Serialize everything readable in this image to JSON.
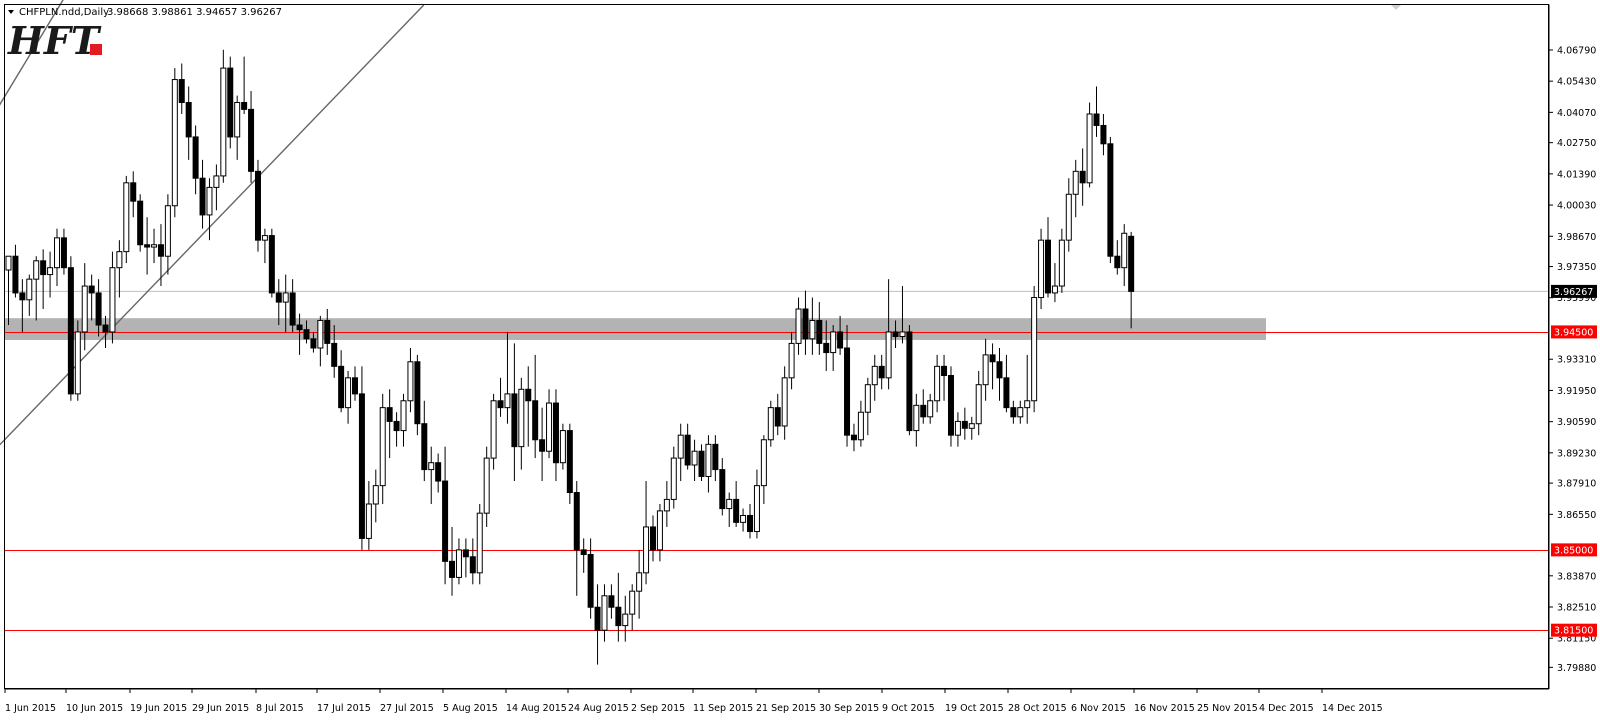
{
  "chart_data": {
    "type": "candlestick",
    "title": "CHFPLN.ndd,Daily",
    "ohlc_header": "3.98668 3.98861 3.94657 3.96267",
    "logo_text": "HFT",
    "ylim": [
      3.7898,
      4.0875
    ],
    "y_ticks": [
      4.0679,
      4.0543,
      4.0407,
      4.0275,
      4.0139,
      4.0003,
      3.9867,
      3.9735,
      3.9599,
      3.9331,
      3.9195,
      3.9059,
      3.8923,
      3.8791,
      3.8655,
      3.8387,
      3.8251,
      3.8115,
      3.7988
    ],
    "x_labels": [
      "1 Jun 2015",
      "10 Jun 2015",
      "19 Jun 2015",
      "29 Jun 2015",
      "8 Jul 2015",
      "17 Jul 2015",
      "27 Jul 2015",
      "5 Aug 2015",
      "14 Aug 2015",
      "24 Aug 2015",
      "2 Sep 2015",
      "11 Sep 2015",
      "21 Sep 2015",
      "30 Sep 2015",
      "9 Oct 2015",
      "19 Oct 2015",
      "28 Oct 2015",
      "6 Nov 2015",
      "16 Nov 2015",
      "25 Nov 2015",
      "4 Dec 2015",
      "14 Dec 2015"
    ],
    "current_price": 3.96267,
    "current_price_label": "3.96267",
    "horizontal_levels": [
      {
        "value": 3.945,
        "label": "3.94500",
        "color": "#ff0000"
      },
      {
        "value": 3.85,
        "label": "3.85000",
        "color": "#ff0000"
      },
      {
        "value": 3.815,
        "label": "3.81500",
        "color": "#ff0000"
      }
    ],
    "zone": {
      "from": 3.9415,
      "to": 3.951,
      "color": "#b3b3b3"
    },
    "channel_lines": [
      [
        [
          0,
          3.975
        ],
        [
          1,
          3.9
        ]
      ],
      [
        [
          3.9,
          0
        ],
        [
          0,
          0
        ]
      ]
    ],
    "trendlines": [
      {
        "start": {
          "bar": -4,
          "price": 4.03
        },
        "end": {
          "bar": 14,
          "price": 4.12
        }
      },
      {
        "start": {
          "bar": -4,
          "price": 3.887
        },
        "end": {
          "bar": 60,
          "price": 4.0875
        }
      }
    ],
    "colors": {
      "bull_body": "#ffffff",
      "bear_body": "#000000",
      "wick": "#000000",
      "grid_text": "#000000",
      "level": "#ff0000",
      "zone": "#b3b3b3",
      "current_line": "#c0c0c0",
      "logo": "#1a1a1a",
      "logo_accent": "#e31b23"
    },
    "candles": [
      [
        3.972,
        3.978,
        3.948,
        3.978
      ],
      [
        3.978,
        3.983,
        3.96,
        3.962
      ],
      [
        3.962,
        3.968,
        3.945,
        3.959
      ],
      [
        3.959,
        3.97,
        3.952,
        3.968
      ],
      [
        3.968,
        3.978,
        3.95,
        3.976
      ],
      [
        3.976,
        3.981,
        3.955,
        3.97
      ],
      [
        3.97,
        3.98,
        3.96,
        3.973
      ],
      [
        3.973,
        3.99,
        3.965,
        3.986
      ],
      [
        3.986,
        3.99,
        3.97,
        3.973
      ],
      [
        3.973,
        3.978,
        3.915,
        3.918
      ],
      [
        3.918,
        3.95,
        3.915,
        3.945
      ],
      [
        3.945,
        3.975,
        3.937,
        3.965
      ],
      [
        3.965,
        3.97,
        3.95,
        3.962
      ],
      [
        3.962,
        3.968,
        3.943,
        3.948
      ],
      [
        3.948,
        3.952,
        3.938,
        3.945
      ],
      [
        3.945,
        3.98,
        3.94,
        3.973
      ],
      [
        3.973,
        3.985,
        3.96,
        3.98
      ],
      [
        3.98,
        4.013,
        3.975,
        4.01
      ],
      [
        4.01,
        4.015,
        3.995,
        4.002
      ],
      [
        4.002,
        4.005,
        3.98,
        3.983
      ],
      [
        3.983,
        3.995,
        3.97,
        3.982
      ],
      [
        3.982,
        3.99,
        3.975,
        3.983
      ],
      [
        3.983,
        3.992,
        3.965,
        3.978
      ],
      [
        3.978,
        4.005,
        3.97,
        4.0
      ],
      [
        4.0,
        4.06,
        3.995,
        4.055
      ],
      [
        4.055,
        4.062,
        4.04,
        4.045
      ],
      [
        4.045,
        4.052,
        4.02,
        4.03
      ],
      [
        4.03,
        4.035,
        4.005,
        4.012
      ],
      [
        4.012,
        4.02,
        3.99,
        3.996
      ],
      [
        3.996,
        4.012,
        3.985,
        4.008
      ],
      [
        4.008,
        4.018,
        3.998,
        4.013
      ],
      [
        4.013,
        4.068,
        4.01,
        4.06
      ],
      [
        4.06,
        4.065,
        4.025,
        4.03
      ],
      [
        4.03,
        4.048,
        4.02,
        4.045
      ],
      [
        4.045,
        4.065,
        4.04,
        4.042
      ],
      [
        4.042,
        4.05,
        4.01,
        4.015
      ],
      [
        4.015,
        4.02,
        3.98,
        3.985
      ],
      [
        3.985,
        3.99,
        3.975,
        3.987
      ],
      [
        3.987,
        3.99,
        3.96,
        3.962
      ],
      [
        3.962,
        3.968,
        3.948,
        3.958
      ],
      [
        3.958,
        3.97,
        3.945,
        3.962
      ],
      [
        3.962,
        3.968,
        3.945,
        3.948
      ],
      [
        3.948,
        3.953,
        3.935,
        3.946
      ],
      [
        3.946,
        3.95,
        3.94,
        3.942
      ],
      [
        3.942,
        3.945,
        3.936,
        3.938
      ],
      [
        3.938,
        3.952,
        3.93,
        3.95
      ],
      [
        3.95,
        3.955,
        3.935,
        3.94
      ],
      [
        3.94,
        3.948,
        3.925,
        3.93
      ],
      [
        3.93,
        3.937,
        3.91,
        3.912
      ],
      [
        3.912,
        3.928,
        3.905,
        3.925
      ],
      [
        3.925,
        3.93,
        3.915,
        3.918
      ],
      [
        3.918,
        3.93,
        3.85,
        3.855
      ],
      [
        3.855,
        3.88,
        3.85,
        3.87
      ],
      [
        3.87,
        3.885,
        3.862,
        3.878
      ],
      [
        3.878,
        3.918,
        3.87,
        3.912
      ],
      [
        3.912,
        3.92,
        3.89,
        3.906
      ],
      [
        3.906,
        3.91,
        3.895,
        3.902
      ],
      [
        3.902,
        3.918,
        3.895,
        3.915
      ],
      [
        3.915,
        3.938,
        3.91,
        3.932
      ],
      [
        3.932,
        3.935,
        3.9,
        3.905
      ],
      [
        3.905,
        3.915,
        3.88,
        3.885
      ],
      [
        3.885,
        3.895,
        3.87,
        3.888
      ],
      [
        3.888,
        3.892,
        3.875,
        3.88
      ],
      [
        3.88,
        3.895,
        3.835,
        3.845
      ],
      [
        3.845,
        3.86,
        3.83,
        3.838
      ],
      [
        3.838,
        3.855,
        3.835,
        3.85
      ],
      [
        3.85,
        3.855,
        3.838,
        3.847
      ],
      [
        3.847,
        3.855,
        3.835,
        3.84
      ],
      [
        3.84,
        3.87,
        3.835,
        3.866
      ],
      [
        3.866,
        3.895,
        3.86,
        3.89
      ],
      [
        3.89,
        3.918,
        3.885,
        3.915
      ],
      [
        3.915,
        3.925,
        3.908,
        3.912
      ],
      [
        3.912,
        3.945,
        3.905,
        3.918
      ],
      [
        3.918,
        3.94,
        3.88,
        3.895
      ],
      [
        3.895,
        3.925,
        3.885,
        3.92
      ],
      [
        3.92,
        3.93,
        3.895,
        3.915
      ],
      [
        3.915,
        3.935,
        3.89,
        3.898
      ],
      [
        3.898,
        3.912,
        3.88,
        3.893
      ],
      [
        3.893,
        3.92,
        3.89,
        3.914
      ],
      [
        3.914,
        3.92,
        3.88,
        3.888
      ],
      [
        3.888,
        3.905,
        3.885,
        3.902
      ],
      [
        3.902,
        3.905,
        3.87,
        3.875
      ],
      [
        3.875,
        3.88,
        3.83,
        3.85
      ],
      [
        3.85,
        3.855,
        3.84,
        3.848
      ],
      [
        3.848,
        3.855,
        3.82,
        3.825
      ],
      [
        3.825,
        3.835,
        3.8,
        3.815
      ],
      [
        3.815,
        3.835,
        3.81,
        3.83
      ],
      [
        3.83,
        3.835,
        3.82,
        3.825
      ],
      [
        3.825,
        3.84,
        3.81,
        3.817
      ],
      [
        3.817,
        3.83,
        3.81,
        3.822
      ],
      [
        3.822,
        3.835,
        3.815,
        3.832
      ],
      [
        3.832,
        3.85,
        3.82,
        3.84
      ],
      [
        3.84,
        3.88,
        3.835,
        3.86
      ],
      [
        3.86,
        3.865,
        3.845,
        3.85
      ],
      [
        3.85,
        3.87,
        3.845,
        3.867
      ],
      [
        3.867,
        3.88,
        3.86,
        3.872
      ],
      [
        3.872,
        3.895,
        3.868,
        3.89
      ],
      [
        3.89,
        3.905,
        3.88,
        3.9
      ],
      [
        3.9,
        3.905,
        3.885,
        3.887
      ],
      [
        3.887,
        3.898,
        3.88,
        3.893
      ],
      [
        3.893,
        3.896,
        3.88,
        3.882
      ],
      [
        3.882,
        3.9,
        3.875,
        3.896
      ],
      [
        3.896,
        3.9,
        3.88,
        3.885
      ],
      [
        3.885,
        3.89,
        3.865,
        3.868
      ],
      [
        3.868,
        3.875,
        3.86,
        3.872
      ],
      [
        3.872,
        3.88,
        3.86,
        3.862
      ],
      [
        3.862,
        3.868,
        3.858,
        3.865
      ],
      [
        3.865,
        3.87,
        3.855,
        3.858
      ],
      [
        3.858,
        3.885,
        3.855,
        3.878
      ],
      [
        3.878,
        3.9,
        3.87,
        3.898
      ],
      [
        3.898,
        3.915,
        3.895,
        3.912
      ],
      [
        3.912,
        3.918,
        3.9,
        3.904
      ],
      [
        3.904,
        3.93,
        3.898,
        3.925
      ],
      [
        3.925,
        3.945,
        3.92,
        3.94
      ],
      [
        3.94,
        3.96,
        3.935,
        3.955
      ],
      [
        3.955,
        3.963,
        3.935,
        3.942
      ],
      [
        3.942,
        3.96,
        3.935,
        3.95
      ],
      [
        3.95,
        3.958,
        3.935,
        3.94
      ],
      [
        3.94,
        3.95,
        3.928,
        3.936
      ],
      [
        3.936,
        3.948,
        3.928,
        3.945
      ],
      [
        3.945,
        3.952,
        3.935,
        3.938
      ],
      [
        3.938,
        3.948,
        3.895,
        3.9
      ],
      [
        3.9,
        3.905,
        3.893,
        3.898
      ],
      [
        3.898,
        3.915,
        3.895,
        3.91
      ],
      [
        3.91,
        3.925,
        3.9,
        3.922
      ],
      [
        3.922,
        3.935,
        3.915,
        3.93
      ],
      [
        3.93,
        3.935,
        3.92,
        3.925
      ],
      [
        3.925,
        3.968,
        3.92,
        3.945
      ],
      [
        3.945,
        3.95,
        3.938,
        3.943
      ],
      [
        3.943,
        3.965,
        3.94,
        3.945
      ],
      [
        3.945,
        3.948,
        3.9,
        3.902
      ],
      [
        3.902,
        3.918,
        3.895,
        3.913
      ],
      [
        3.913,
        3.92,
        3.905,
        3.908
      ],
      [
        3.908,
        3.918,
        3.905,
        3.915
      ],
      [
        3.915,
        3.935,
        3.91,
        3.93
      ],
      [
        3.93,
        3.935,
        3.915,
        3.926
      ],
      [
        3.926,
        3.93,
        3.895,
        3.9
      ],
      [
        3.9,
        3.91,
        3.895,
        3.906
      ],
      [
        3.906,
        3.912,
        3.898,
        3.903
      ],
      [
        3.903,
        3.908,
        3.898,
        3.905
      ],
      [
        3.905,
        3.928,
        3.9,
        3.922
      ],
      [
        3.922,
        3.942,
        3.915,
        3.935
      ],
      [
        3.935,
        3.94,
        3.92,
        3.932
      ],
      [
        3.932,
        3.938,
        3.915,
        3.925
      ],
      [
        3.925,
        3.935,
        3.91,
        3.912
      ],
      [
        3.912,
        3.915,
        3.905,
        3.908
      ],
      [
        3.908,
        3.915,
        3.905,
        3.912
      ],
      [
        3.912,
        3.935,
        3.905,
        3.915
      ],
      [
        3.915,
        3.965,
        3.91,
        3.96
      ],
      [
        3.96,
        3.99,
        3.955,
        3.985
      ],
      [
        3.985,
        3.995,
        3.96,
        3.962
      ],
      [
        3.962,
        3.975,
        3.958,
        3.965
      ],
      [
        3.965,
        3.99,
        3.962,
        3.985
      ],
      [
        3.985,
        4.012,
        3.98,
        4.005
      ],
      [
        4.005,
        4.02,
        3.995,
        4.015
      ],
      [
        4.015,
        4.025,
        4.0,
        4.01
      ],
      [
        4.01,
        4.045,
        4.008,
        4.04
      ],
      [
        4.04,
        4.052,
        4.03,
        4.035
      ],
      [
        4.035,
        4.04,
        4.022,
        4.027
      ],
      [
        4.027,
        4.03,
        3.975,
        3.978
      ],
      [
        3.978,
        3.985,
        3.97,
        3.973
      ],
      [
        3.973,
        3.992,
        3.965,
        3.988
      ],
      [
        3.98668,
        3.98861,
        3.94657,
        3.96267
      ]
    ]
  }
}
